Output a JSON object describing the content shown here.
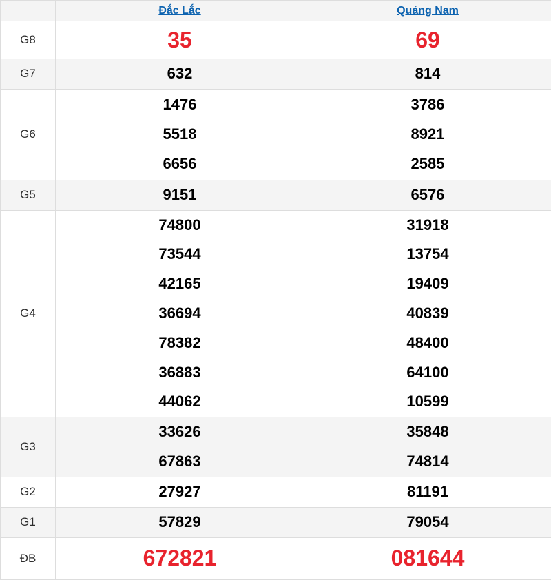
{
  "colors": {
    "highlight_red": "#e8232d",
    "link_blue": "#0d63b0",
    "stripe_gray": "#f4f4f4",
    "border_gray": "#dddddd"
  },
  "table": {
    "columns": {
      "province1": "Đắc Lắc",
      "province2": "Quảng Nam"
    },
    "rows": [
      {
        "label": "G8",
        "c1": [
          "35"
        ],
        "c2": [
          "69"
        ]
      },
      {
        "label": "G7",
        "c1": [
          "632"
        ],
        "c2": [
          "814"
        ]
      },
      {
        "label": "G6",
        "c1": [
          "1476",
          "5518",
          "6656"
        ],
        "c2": [
          "3786",
          "8921",
          "2585"
        ]
      },
      {
        "label": "G5",
        "c1": [
          "9151"
        ],
        "c2": [
          "6576"
        ]
      },
      {
        "label": "G4",
        "c1": [
          "74800",
          "73544",
          "42165",
          "36694",
          "78382",
          "36883",
          "44062"
        ],
        "c2": [
          "31918",
          "13754",
          "19409",
          "40839",
          "48400",
          "64100",
          "10599"
        ]
      },
      {
        "label": "G3",
        "c1": [
          "33626",
          "67863"
        ],
        "c2": [
          "35848",
          "74814"
        ]
      },
      {
        "label": "G2",
        "c1": [
          "27927"
        ],
        "c2": [
          "81191"
        ]
      },
      {
        "label": "G1",
        "c1": [
          "57829"
        ],
        "c2": [
          "79054"
        ]
      },
      {
        "label": "ĐB",
        "c1": [
          "672821"
        ],
        "c2": [
          "081644"
        ]
      }
    ]
  }
}
